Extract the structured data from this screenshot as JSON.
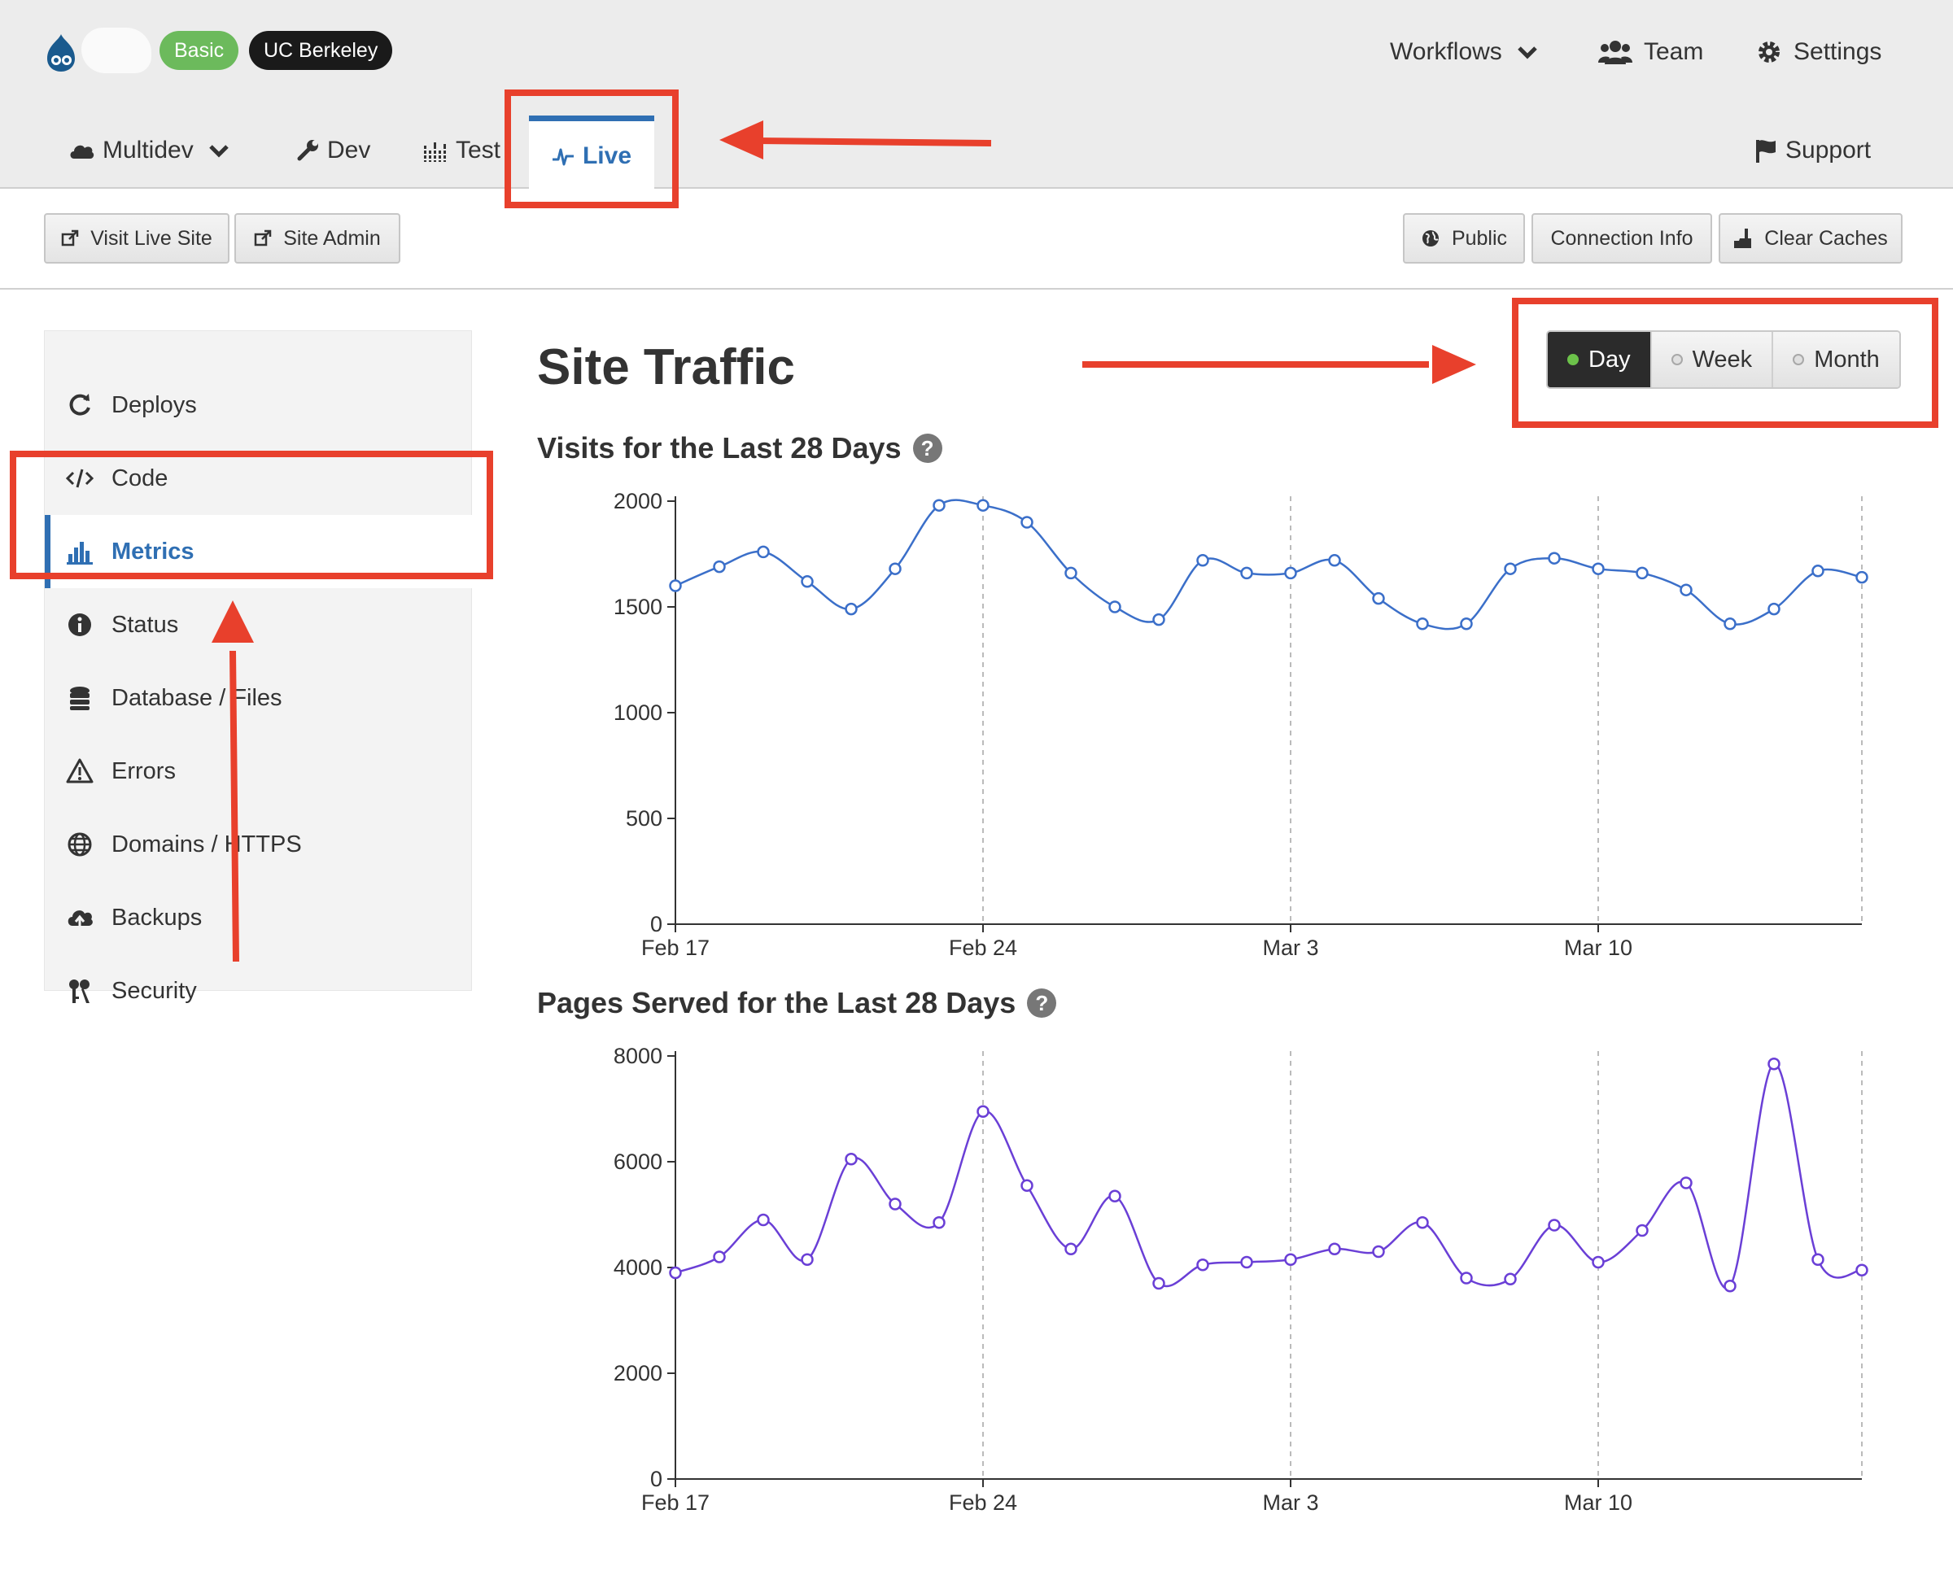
{
  "header": {
    "plan_badge": "Basic",
    "org_badge": "UC Berkeley",
    "workflows": "Workflows",
    "team": "Team",
    "settings": "Settings"
  },
  "env_tabs": {
    "multidev": "Multidev",
    "dev": "Dev",
    "test": "Test",
    "live": "Live",
    "support": "Support"
  },
  "toolbar": {
    "visit_live_site": "Visit Live Site",
    "site_admin": "Site Admin",
    "public": "Public",
    "connection_info": "Connection Info",
    "clear_caches": "Clear Caches"
  },
  "sidebar": {
    "items": [
      {
        "label": "Deploys",
        "icon": "refresh-icon"
      },
      {
        "label": "Code",
        "icon": "code-icon"
      },
      {
        "label": "Metrics",
        "icon": "bar-chart-icon"
      },
      {
        "label": "Status",
        "icon": "info-icon"
      },
      {
        "label": "Database / Files",
        "icon": "database-icon"
      },
      {
        "label": "Errors",
        "icon": "warning-icon"
      },
      {
        "label": "Domains / HTTPS",
        "icon": "globe-icon"
      },
      {
        "label": "Backups",
        "icon": "cloud-upload-icon"
      },
      {
        "label": "Security",
        "icon": "keys-icon"
      }
    ],
    "active_index": 2
  },
  "main": {
    "title": "Site Traffic",
    "range": {
      "day": "Day",
      "week": "Week",
      "month": "Month",
      "selected": "Day"
    },
    "chart1_title": "Visits for the Last 28 Days",
    "chart2_title": "Pages Served for the Last 28 Days"
  },
  "colors": {
    "accent": "#2f6fb3",
    "visits_line": "#3b6fc9",
    "pages_line": "#6a3fd6",
    "annotation": "#e8402c",
    "selected_dot": "#6cc24a"
  },
  "chart_data": [
    {
      "type": "line",
      "title": "Visits for the Last 28 Days",
      "x": [
        "Feb 17",
        "Feb 18",
        "Feb 19",
        "Feb 20",
        "Feb 21",
        "Feb 22",
        "Feb 23",
        "Feb 24",
        "Feb 25",
        "Feb 26",
        "Feb 27",
        "Feb 28",
        "Mar 1",
        "Mar 2",
        "Mar 3",
        "Mar 4",
        "Mar 5",
        "Mar 6",
        "Mar 7",
        "Mar 8",
        "Mar 9",
        "Mar 10",
        "Mar 11",
        "Mar 12",
        "Mar 13",
        "Mar 14",
        "Mar 15",
        "Mar 16"
      ],
      "values": [
        1600,
        1690,
        1760,
        1620,
        1490,
        1680,
        1980,
        1980,
        1900,
        1660,
        1500,
        1440,
        1720,
        1660,
        1660,
        1720,
        1540,
        1420,
        1420,
        1680,
        1730,
        1680,
        1660,
        1580,
        1420,
        1490,
        1670,
        1640
      ],
      "xticks": [
        "Feb 17",
        "Feb 24",
        "Mar 3",
        "Mar 10"
      ],
      "yticks": [
        0,
        500,
        1000,
        1500,
        2000
      ],
      "ylim": [
        0,
        2000
      ],
      "grid": "vertical dashed at ticks"
    },
    {
      "type": "line",
      "title": "Pages Served for the Last 28 Days",
      "x": [
        "Feb 17",
        "Feb 18",
        "Feb 19",
        "Feb 20",
        "Feb 21",
        "Feb 22",
        "Feb 23",
        "Feb 24",
        "Feb 25",
        "Feb 26",
        "Feb 27",
        "Feb 28",
        "Mar 1",
        "Mar 2",
        "Mar 3",
        "Mar 4",
        "Mar 5",
        "Mar 6",
        "Mar 7",
        "Mar 8",
        "Mar 9",
        "Mar 10",
        "Mar 11",
        "Mar 12",
        "Mar 13",
        "Mar 14",
        "Mar 15",
        "Mar 16"
      ],
      "values": [
        3900,
        4200,
        4900,
        4150,
        6050,
        5200,
        4850,
        6950,
        5550,
        4350,
        5350,
        3700,
        4050,
        4100,
        4150,
        4350,
        4300,
        4850,
        3800,
        3780,
        4800,
        4100,
        4700,
        5600,
        3650,
        7850,
        4150,
        3950
      ],
      "xticks": [
        "Feb 17",
        "Feb 24",
        "Mar 3",
        "Mar 10"
      ],
      "yticks": [
        0,
        2000,
        4000,
        6000,
        8000
      ],
      "ylim": [
        0,
        8000
      ],
      "grid": "vertical dashed at ticks"
    }
  ]
}
